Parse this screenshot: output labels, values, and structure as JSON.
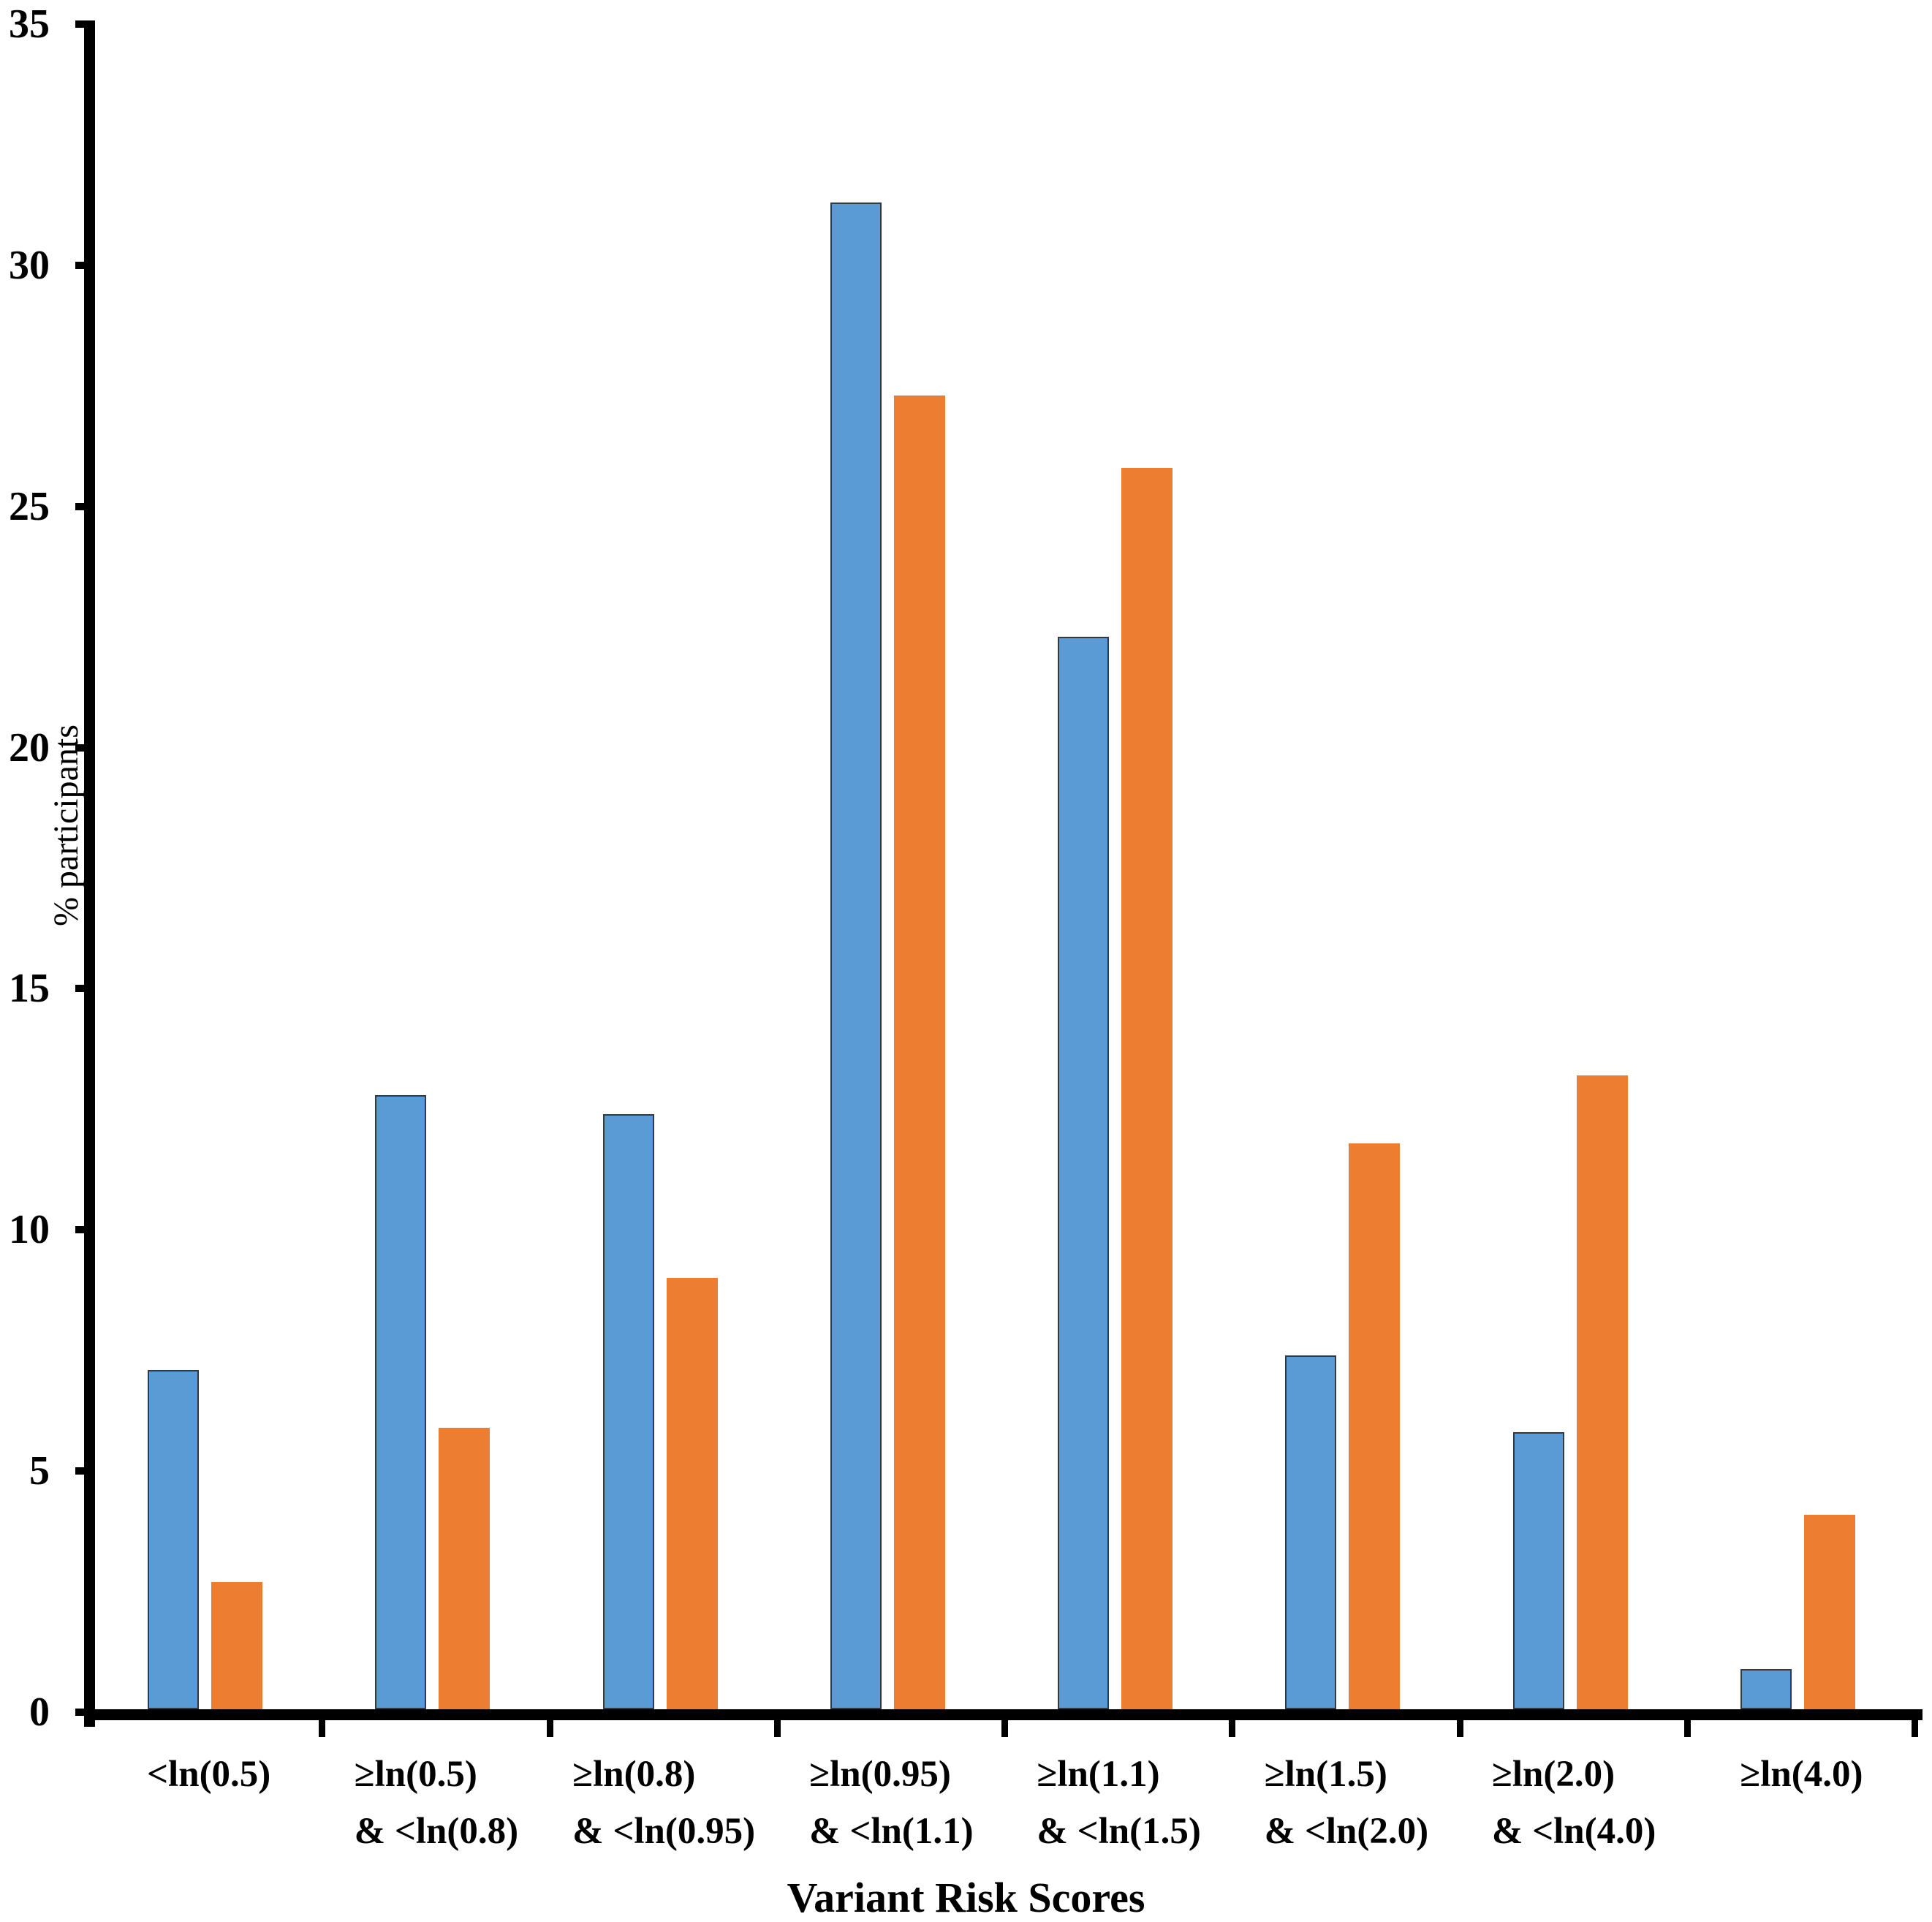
{
  "chart_data": {
    "type": "bar",
    "title": "",
    "xlabel": "Variant Risk Scores",
    "ylabel": "% participants",
    "ylim": [
      0,
      35
    ],
    "yticks": [
      0,
      5,
      10,
      15,
      20,
      25,
      30,
      35
    ],
    "grid": false,
    "legend": "none",
    "background": "#ffffff",
    "axis_color": "#000000",
    "categories": [
      "<ln(0.5)",
      "≥ln(0.5) & <ln(0.8)",
      "≥ln(0.8) & <ln(0.95)",
      "≥ln(0.95) & <ln(1.1)",
      "≥ln(1.1) & <ln(1.5)",
      "≥ln(1.5) & <ln(2.0)",
      "≥ln(2.0) & <ln(4.0)",
      "≥ln(4.0)"
    ],
    "category_lines": [
      [
        "<ln(0.5)"
      ],
      [
        "≥ln(0.5)",
        "& <ln(0.8)"
      ],
      [
        "≥ln(0.8)",
        "& <ln(0.95)"
      ],
      [
        "≥ln(0.95)",
        "& <ln(1.1)"
      ],
      [
        "≥ln(1.1)",
        "& <ln(1.5)"
      ],
      [
        "≥ln(1.5)",
        "& <ln(2.0)"
      ],
      [
        "≥ln(2.0)",
        "& <ln(4.0)"
      ],
      [
        "≥ln(4.0)"
      ]
    ],
    "series": [
      {
        "name": "blue",
        "color": "#5B9BD5",
        "border_color": "#2F3A45",
        "values": [
          7.1,
          12.8,
          12.4,
          31.3,
          22.3,
          7.4,
          5.8,
          0.9
        ]
      },
      {
        "name": "orange",
        "color": "#ED7D31",
        "border_color": "",
        "values": [
          2.7,
          5.9,
          9.0,
          27.3,
          25.8,
          11.8,
          13.2,
          4.1
        ]
      }
    ]
  }
}
